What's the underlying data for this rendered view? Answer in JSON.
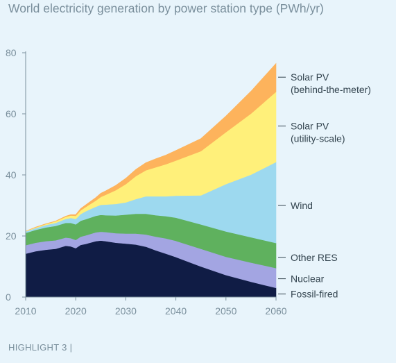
{
  "title": "World electricity generation by power station type (PWh/yr)",
  "footer": "HIGHLIGHT 3 |",
  "chart_data": {
    "type": "area",
    "stacked": true,
    "title": "World electricity generation by power station type (PWh/yr)",
    "xlim": [
      2010,
      2060
    ],
    "ylim": [
      0,
      80
    ],
    "xticks": [
      2010,
      2020,
      2030,
      2040,
      2050,
      2060
    ],
    "yticks": [
      0,
      20,
      40,
      60,
      80
    ],
    "grid": false,
    "legend_placement": "right",
    "x": [
      2010,
      2012,
      2014,
      2016,
      2018,
      2019,
      2020,
      2021,
      2022,
      2024,
      2025,
      2026,
      2028,
      2030,
      2032,
      2034,
      2036,
      2038,
      2040,
      2045,
      2050,
      2055,
      2060
    ],
    "series": [
      {
        "name": "Fossil-fired",
        "color": "#101c45",
        "values": [
          14.2,
          15.0,
          15.5,
          15.8,
          16.8,
          16.6,
          16.0,
          17.1,
          17.4,
          18.3,
          18.5,
          18.3,
          17.8,
          17.5,
          17.2,
          16.5,
          15.3,
          14.2,
          13.1,
          10.0,
          7.2,
          5.0,
          3.0
        ]
      },
      {
        "name": "Nuclear",
        "color": "#a3a5e2",
        "values": [
          2.8,
          2.8,
          2.8,
          2.8,
          2.7,
          2.7,
          2.7,
          2.7,
          2.8,
          2.9,
          2.9,
          3.0,
          3.1,
          3.3,
          3.6,
          4.0,
          4.5,
          5.0,
          5.3,
          5.8,
          6.0,
          6.3,
          6.5
        ]
      },
      {
        "name": "Other RES",
        "color": "#5fb15e",
        "values": [
          4.0,
          4.2,
          4.5,
          4.7,
          4.8,
          5.0,
          5.1,
          5.2,
          5.3,
          5.4,
          5.5,
          5.5,
          5.8,
          6.2,
          6.5,
          6.8,
          7.0,
          7.3,
          7.6,
          8.0,
          8.3,
          8.3,
          8.2
        ]
      },
      {
        "name": "Wind",
        "color": "#9dd9ef",
        "values": [
          0.5,
          0.6,
          0.8,
          1.0,
          1.3,
          1.6,
          1.8,
          2.2,
          2.6,
          3.0,
          3.3,
          3.5,
          3.8,
          4.0,
          4.8,
          5.7,
          6.2,
          6.5,
          7.2,
          9.5,
          15.5,
          20.5,
          26.5
        ]
      },
      {
        "name": "Solar PV (utility-scale)",
        "color": "#fff07a",
        "values": [
          0.1,
          0.2,
          0.3,
          0.5,
          0.7,
          0.8,
          1.0,
          1.2,
          1.4,
          2.0,
          2.6,
          3.2,
          4.5,
          6.0,
          7.5,
          8.5,
          9.5,
          10.5,
          11.5,
          14.5,
          17.0,
          20.0,
          23.0
        ]
      },
      {
        "name": "Solar PV (behind-the-meter)",
        "color": "#fdb35c",
        "values": [
          0.0,
          0.1,
          0.1,
          0.1,
          0.2,
          0.3,
          0.4,
          0.6,
          0.7,
          1.0,
          1.2,
          1.3,
          1.6,
          1.9,
          2.2,
          2.5,
          2.8,
          3.0,
          3.3,
          4.1,
          5.3,
          7.3,
          9.3
        ]
      }
    ],
    "legend": [
      {
        "label": [
          "Solar PV",
          "(behind-the-meter)"
        ],
        "at": 72
      },
      {
        "label": [
          "Solar PV",
          "(utility-scale)"
        ],
        "at": 56
      },
      {
        "label": [
          "Wind"
        ],
        "at": 30
      },
      {
        "label": [
          "Other RES"
        ],
        "at": 13
      },
      {
        "label": [
          "Nuclear"
        ],
        "at": 6
      },
      {
        "label": [
          "Fossil-fired"
        ],
        "at": 1
      }
    ]
  }
}
